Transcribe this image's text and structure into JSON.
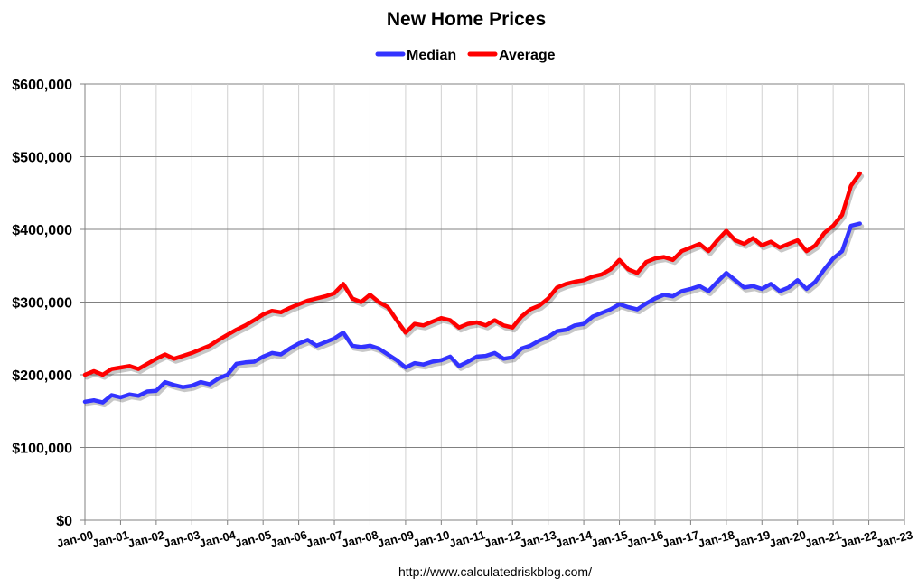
{
  "chart_data": {
    "type": "line",
    "title": "New Home Prices",
    "xlabel": "",
    "ylabel": "",
    "source": "http://www.calculatedriskblog.com/",
    "ylim": [
      0,
      600000
    ],
    "yticks": [
      0,
      100000,
      200000,
      300000,
      400000,
      500000,
      600000
    ],
    "ytick_labels": [
      "$0",
      "$100,000",
      "$200,000",
      "$300,000",
      "$400,000",
      "$500,000",
      "$600,000"
    ],
    "xticks": [
      "Jan-00",
      "Jan-01",
      "Jan-02",
      "Jan-03",
      "Jan-04",
      "Jan-05",
      "Jan-06",
      "Jan-07",
      "Jan-08",
      "Jan-09",
      "Jan-10",
      "Jan-11",
      "Jan-12",
      "Jan-13",
      "Jan-14",
      "Jan-15",
      "Jan-16",
      "Jan-17",
      "Jan-18",
      "Jan-19",
      "Jan-20",
      "Jan-21",
      "Jan-22",
      "Jan-23"
    ],
    "xlim": [
      "Jan-00",
      "Jan-23"
    ],
    "grid": true,
    "legend_position": "top-center",
    "series": [
      {
        "name": "Median",
        "color": "#3333FF",
        "points": [
          [
            "2000-01",
            163000
          ],
          [
            "2000-04",
            165000
          ],
          [
            "2000-07",
            162000
          ],
          [
            "2000-10",
            172000
          ],
          [
            "2001-01",
            169000
          ],
          [
            "2001-04",
            173000
          ],
          [
            "2001-07",
            171000
          ],
          [
            "2001-10",
            177000
          ],
          [
            "2002-01",
            178000
          ],
          [
            "2002-04",
            190000
          ],
          [
            "2002-07",
            186000
          ],
          [
            "2002-10",
            183000
          ],
          [
            "2003-01",
            185000
          ],
          [
            "2003-04",
            190000
          ],
          [
            "2003-07",
            187000
          ],
          [
            "2003-10",
            195000
          ],
          [
            "2004-01",
            200000
          ],
          [
            "2004-04",
            215000
          ],
          [
            "2004-07",
            217000
          ],
          [
            "2004-10",
            218000
          ],
          [
            "2005-01",
            225000
          ],
          [
            "2005-04",
            230000
          ],
          [
            "2005-07",
            228000
          ],
          [
            "2005-10",
            236000
          ],
          [
            "2006-01",
            243000
          ],
          [
            "2006-04",
            248000
          ],
          [
            "2006-07",
            240000
          ],
          [
            "2006-10",
            245000
          ],
          [
            "2007-01",
            250000
          ],
          [
            "2007-04",
            258000
          ],
          [
            "2007-07",
            240000
          ],
          [
            "2007-10",
            238000
          ],
          [
            "2008-01",
            240000
          ],
          [
            "2008-04",
            236000
          ],
          [
            "2008-07",
            228000
          ],
          [
            "2008-10",
            220000
          ],
          [
            "2009-01",
            210000
          ],
          [
            "2009-04",
            216000
          ],
          [
            "2009-07",
            214000
          ],
          [
            "2009-10",
            218000
          ],
          [
            "2010-01",
            220000
          ],
          [
            "2010-04",
            225000
          ],
          [
            "2010-07",
            212000
          ],
          [
            "2010-10",
            218000
          ],
          [
            "2011-01",
            225000
          ],
          [
            "2011-04",
            226000
          ],
          [
            "2011-07",
            230000
          ],
          [
            "2011-10",
            222000
          ],
          [
            "2012-01",
            224000
          ],
          [
            "2012-04",
            236000
          ],
          [
            "2012-07",
            240000
          ],
          [
            "2012-10",
            247000
          ],
          [
            "2013-01",
            252000
          ],
          [
            "2013-04",
            260000
          ],
          [
            "2013-07",
            262000
          ],
          [
            "2013-10",
            268000
          ],
          [
            "2014-01",
            270000
          ],
          [
            "2014-04",
            280000
          ],
          [
            "2014-07",
            285000
          ],
          [
            "2014-10",
            290000
          ],
          [
            "2015-01",
            297000
          ],
          [
            "2015-04",
            293000
          ],
          [
            "2015-07",
            290000
          ],
          [
            "2015-10",
            298000
          ],
          [
            "2016-01",
            305000
          ],
          [
            "2016-04",
            310000
          ],
          [
            "2016-07",
            308000
          ],
          [
            "2016-10",
            315000
          ],
          [
            "2017-01",
            318000
          ],
          [
            "2017-04",
            322000
          ],
          [
            "2017-07",
            315000
          ],
          [
            "2017-10",
            328000
          ],
          [
            "2018-01",
            340000
          ],
          [
            "2018-04",
            330000
          ],
          [
            "2018-07",
            320000
          ],
          [
            "2018-10",
            322000
          ],
          [
            "2019-01",
            318000
          ],
          [
            "2019-04",
            325000
          ],
          [
            "2019-07",
            315000
          ],
          [
            "2019-10",
            320000
          ],
          [
            "2020-01",
            330000
          ],
          [
            "2020-04",
            318000
          ],
          [
            "2020-07",
            328000
          ],
          [
            "2020-10",
            345000
          ],
          [
            "2021-01",
            360000
          ],
          [
            "2021-04",
            370000
          ],
          [
            "2021-07",
            405000
          ],
          [
            "2021-10",
            408000
          ]
        ]
      },
      {
        "name": "Average",
        "color": "#FF0000",
        "points": [
          [
            "2000-01",
            200000
          ],
          [
            "2000-04",
            205000
          ],
          [
            "2000-07",
            200000
          ],
          [
            "2000-10",
            208000
          ],
          [
            "2001-01",
            210000
          ],
          [
            "2001-04",
            212000
          ],
          [
            "2001-07",
            208000
          ],
          [
            "2001-10",
            215000
          ],
          [
            "2002-01",
            222000
          ],
          [
            "2002-04",
            228000
          ],
          [
            "2002-07",
            222000
          ],
          [
            "2002-10",
            226000
          ],
          [
            "2003-01",
            230000
          ],
          [
            "2003-04",
            235000
          ],
          [
            "2003-07",
            240000
          ],
          [
            "2003-10",
            248000
          ],
          [
            "2004-01",
            255000
          ],
          [
            "2004-04",
            262000
          ],
          [
            "2004-07",
            268000
          ],
          [
            "2004-10",
            275000
          ],
          [
            "2005-01",
            283000
          ],
          [
            "2005-04",
            288000
          ],
          [
            "2005-07",
            286000
          ],
          [
            "2005-10",
            292000
          ],
          [
            "2006-01",
            297000
          ],
          [
            "2006-04",
            302000
          ],
          [
            "2006-07",
            305000
          ],
          [
            "2006-10",
            308000
          ],
          [
            "2007-01",
            312000
          ],
          [
            "2007-04",
            325000
          ],
          [
            "2007-07",
            305000
          ],
          [
            "2007-10",
            300000
          ],
          [
            "2008-01",
            310000
          ],
          [
            "2008-04",
            300000
          ],
          [
            "2008-07",
            293000
          ],
          [
            "2008-10",
            275000
          ],
          [
            "2009-01",
            258000
          ],
          [
            "2009-04",
            270000
          ],
          [
            "2009-07",
            268000
          ],
          [
            "2009-10",
            273000
          ],
          [
            "2010-01",
            278000
          ],
          [
            "2010-04",
            275000
          ],
          [
            "2010-07",
            265000
          ],
          [
            "2010-10",
            270000
          ],
          [
            "2011-01",
            272000
          ],
          [
            "2011-04",
            268000
          ],
          [
            "2011-07",
            275000
          ],
          [
            "2011-10",
            268000
          ],
          [
            "2012-01",
            265000
          ],
          [
            "2012-04",
            280000
          ],
          [
            "2012-07",
            290000
          ],
          [
            "2012-10",
            295000
          ],
          [
            "2013-01",
            305000
          ],
          [
            "2013-04",
            320000
          ],
          [
            "2013-07",
            325000
          ],
          [
            "2013-10",
            328000
          ],
          [
            "2014-01",
            330000
          ],
          [
            "2014-04",
            335000
          ],
          [
            "2014-07",
            338000
          ],
          [
            "2014-10",
            345000
          ],
          [
            "2015-01",
            358000
          ],
          [
            "2015-04",
            345000
          ],
          [
            "2015-07",
            340000
          ],
          [
            "2015-10",
            355000
          ],
          [
            "2016-01",
            360000
          ],
          [
            "2016-04",
            362000
          ],
          [
            "2016-07",
            358000
          ],
          [
            "2016-10",
            370000
          ],
          [
            "2017-01",
            375000
          ],
          [
            "2017-04",
            380000
          ],
          [
            "2017-07",
            370000
          ],
          [
            "2017-10",
            385000
          ],
          [
            "2018-01",
            398000
          ],
          [
            "2018-04",
            385000
          ],
          [
            "2018-07",
            380000
          ],
          [
            "2018-10",
            388000
          ],
          [
            "2019-01",
            378000
          ],
          [
            "2019-04",
            383000
          ],
          [
            "2019-07",
            375000
          ],
          [
            "2019-10",
            380000
          ],
          [
            "2020-01",
            385000
          ],
          [
            "2020-04",
            370000
          ],
          [
            "2020-07",
            378000
          ],
          [
            "2020-10",
            395000
          ],
          [
            "2021-01",
            405000
          ],
          [
            "2021-04",
            420000
          ],
          [
            "2021-07",
            460000
          ],
          [
            "2021-10",
            477000
          ]
        ]
      }
    ]
  }
}
